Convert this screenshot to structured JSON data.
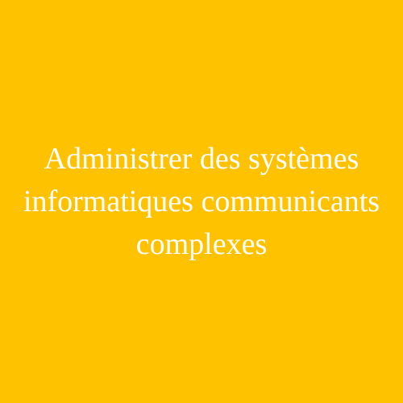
{
  "card": {
    "background_color": "#FFC200",
    "text_color": "#FFFFFF",
    "title_lines": [
      "Administrer des systèmes",
      "informatiques communicants",
      "complexes"
    ]
  }
}
